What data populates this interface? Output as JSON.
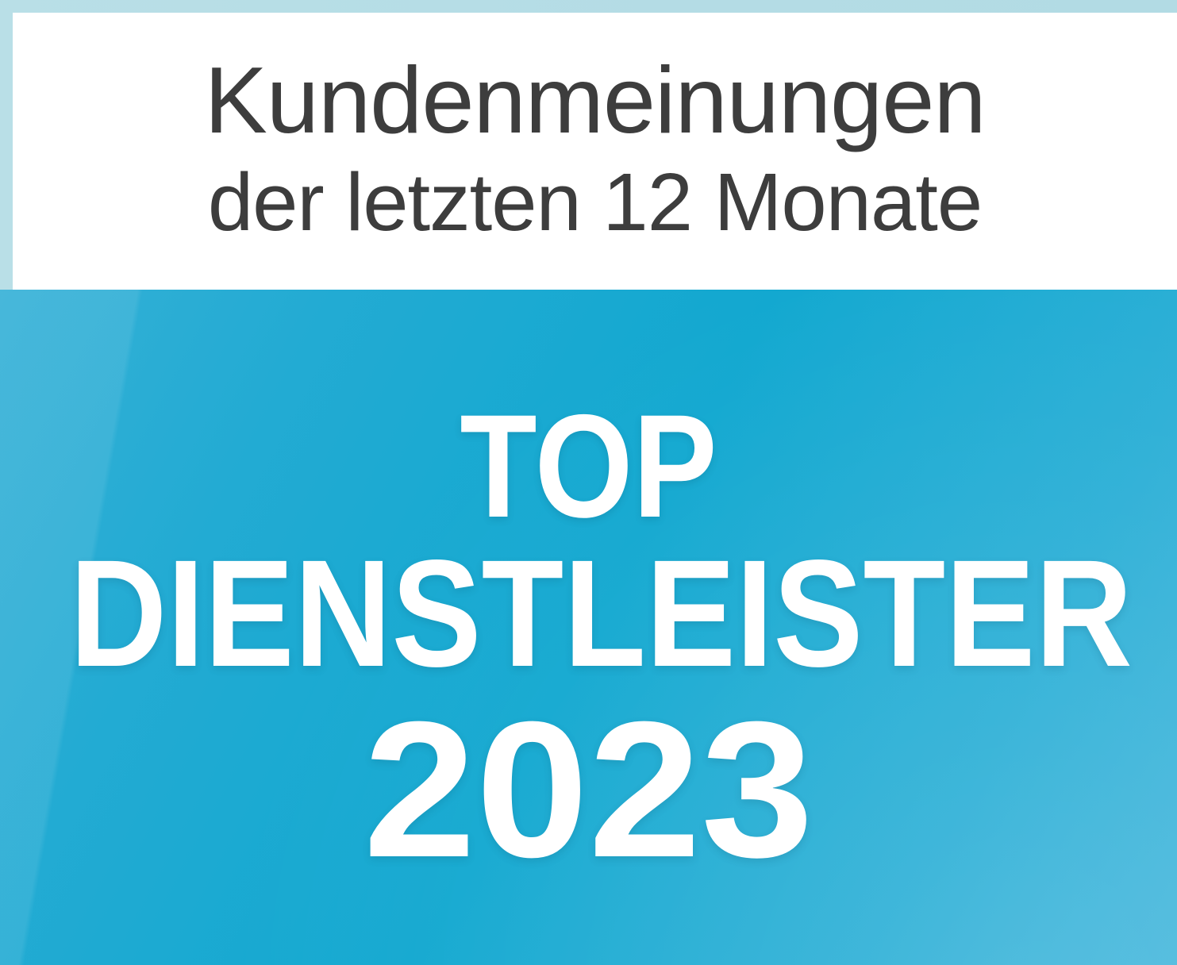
{
  "badge": {
    "header": {
      "line1": "Kundenmeinungen",
      "line2": "der letzten 12 Monate"
    },
    "title": {
      "line1": "TOP",
      "line2": "DIENSTLEISTER",
      "year": "2023"
    },
    "colors": {
      "frame": "#b4dce5",
      "panel_background": "#ffffff",
      "header_text": "#3d3d3d",
      "blue_base": "#12a8d0",
      "blue_light": "#45b7dc",
      "title_text": "#ffffff"
    }
  }
}
